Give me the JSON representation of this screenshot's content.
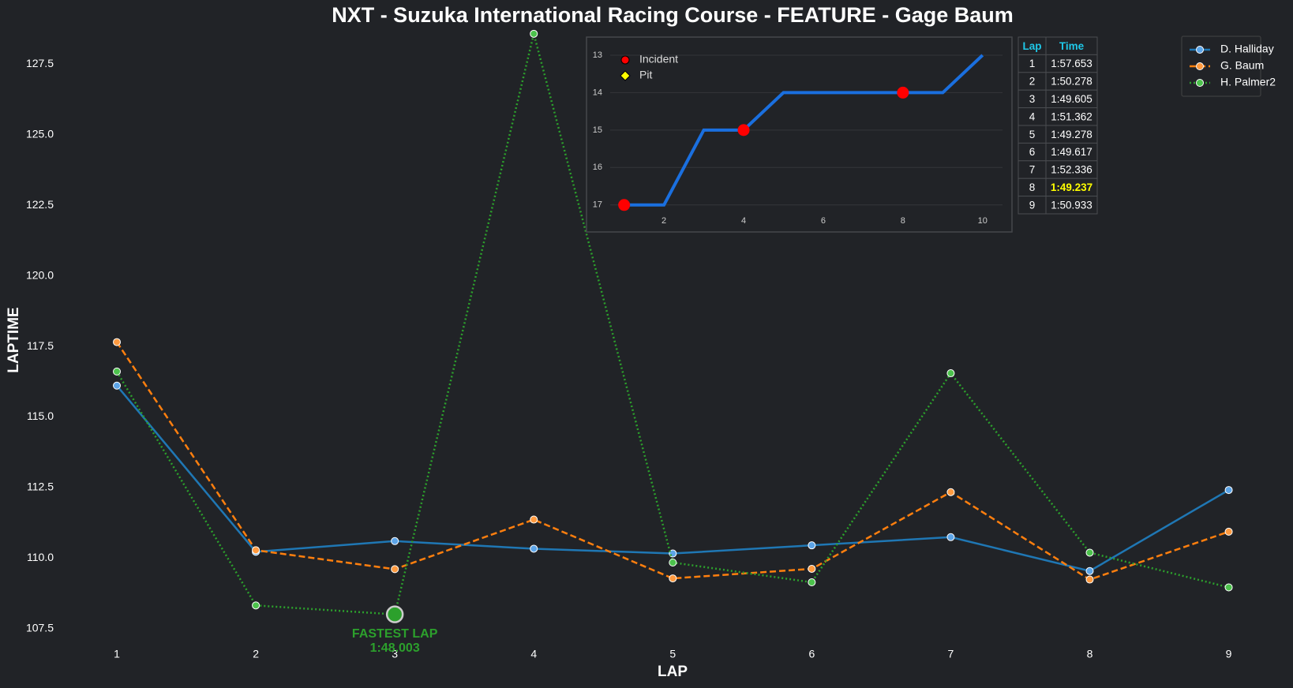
{
  "chart_data": [
    {
      "type": "line",
      "title": "NXT - Suzuka International Racing Course - FEATURE - Gage Baum",
      "xlabel": "LAP",
      "ylabel": "LAPTIME",
      "x": [
        1,
        2,
        3,
        4,
        5,
        6,
        7,
        8,
        9
      ],
      "xlim": [
        0.6,
        9.4
      ],
      "xticks": [
        1,
        2,
        3,
        4,
        5,
        6,
        7,
        8,
        9
      ],
      "ylim": [
        106.4,
        128.9
      ],
      "yticks": [
        107.5,
        {
          "value": 110,
          "label": "110.0"
        },
        112.5,
        {
          "value": 115,
          "label": "115.0"
        },
        117.5,
        {
          "value": 120,
          "label": "120.0"
        },
        122.5,
        {
          "value": 125,
          "label": "125.0"
        },
        127.5
      ],
      "grid": false,
      "legend": "upper right",
      "series": [
        {
          "name": "D. Halliday",
          "color": "#1f77b4",
          "marker": "#5da5e8",
          "style": "solid",
          "values": [
            116.11,
            110.22,
            110.6,
            110.33,
            110.16,
            110.45,
            110.74,
            109.54,
            112.41
          ]
        },
        {
          "name": "G. Baum",
          "color": "#ff7f0e",
          "marker": "#ff9a40",
          "style": "dashed",
          "values": [
            117.653,
            110.278,
            109.605,
            111.362,
            109.278,
            109.617,
            112.336,
            109.237,
            110.933
          ]
        },
        {
          "name": "H. Palmer2",
          "color": "#2ca02c",
          "marker": "#4cc24c",
          "style": "dotted",
          "values": [
            116.61,
            108.32,
            108.003,
            128.58,
            109.84,
            109.14,
            116.55,
            110.19,
            108.96
          ]
        }
      ],
      "annotation": {
        "label": "FASTEST LAP",
        "value_label": "1:48.003"
      }
    },
    {
      "type": "line",
      "x": [
        1,
        2,
        3,
        4,
        5,
        6,
        7,
        8,
        9,
        10
      ],
      "xlim": [
        0.65,
        10.5
      ],
      "xticks": [
        2,
        4,
        6,
        8,
        10
      ],
      "ylim": [
        17.3,
        12.55
      ],
      "yticks": [
        13,
        14,
        15,
        16,
        17
      ],
      "grid": true,
      "legend": "upper left",
      "series": [
        {
          "color": "#1a6fdf",
          "values": [
            17,
            17,
            15,
            15,
            14,
            14,
            14,
            14,
            14,
            13
          ]
        }
      ],
      "incidents": {
        "name": "Incident",
        "color": "#ff0000",
        "x": [
          1,
          4,
          8
        ]
      },
      "pits": {
        "name": "Pit",
        "color": "#ffff00",
        "x": []
      }
    }
  ],
  "table": {
    "header": [
      "Lap",
      "Time"
    ],
    "rows": [
      [
        1,
        "1:57.653"
      ],
      [
        2,
        "1:50.278"
      ],
      [
        3,
        "1:49.605"
      ],
      [
        4,
        "1:51.362"
      ],
      [
        5,
        "1:49.278"
      ],
      [
        6,
        "1:49.617"
      ],
      [
        7,
        "1:52.336"
      ],
      [
        8,
        "1:49.237"
      ],
      [
        9,
        "1:50.933"
      ]
    ],
    "highlight_row": 7
  }
}
